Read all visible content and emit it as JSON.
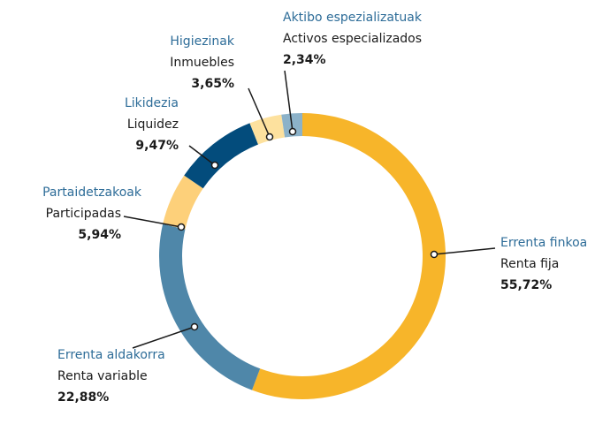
{
  "chart_data": {
    "type": "donut",
    "categories": [
      "Errenta finkoa",
      "Errenta aldakorra",
      "Partaidetzakoak",
      "Likidezia",
      "Higiezinak",
      "Aktibo espezializatuak"
    ],
    "subcategories": [
      "Renta fija",
      "Renta variable",
      "Participadas",
      "Liquidez",
      "Inmuebles",
      "Activos especializados"
    ],
    "values": [
      55.72,
      22.88,
      5.94,
      9.47,
      3.65,
      2.34
    ],
    "value_labels": [
      "55,72%",
      "22,88%",
      "5,94%",
      "9,47%",
      "3,65%",
      "2,34%"
    ],
    "colors": [
      "#f7b52a",
      "#4f87a9",
      "#fdd07a",
      "#034c7c",
      "#fde19e",
      "#8cb2c9"
    ]
  }
}
